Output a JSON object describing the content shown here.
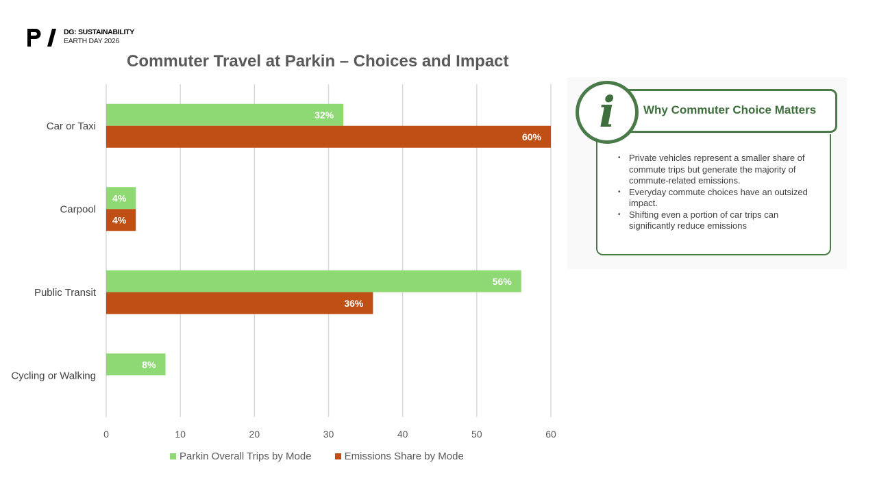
{
  "brand": {
    "logo": "P/",
    "line1": "DG: SUSTAINABILITY",
    "line2": "EARTH DAY 2026"
  },
  "chart_data": {
    "type": "bar",
    "orientation": "horizontal",
    "title": "Commuter Travel at Parkin – Choices and Impact",
    "categories": [
      "Car or Taxi",
      "Carpool",
      "Public Transit",
      "Cycling or Walking"
    ],
    "series": [
      {
        "name": "Parkin Overall Trips by Mode",
        "color": "#8ed973",
        "values": [
          32,
          4,
          56,
          8
        ],
        "labels": [
          "32%",
          "4%",
          "56%",
          "8%"
        ]
      },
      {
        "name": "Emissions Share by Mode",
        "color": "#c04f15",
        "values": [
          60,
          4,
          36,
          0
        ],
        "labels": [
          "60%",
          "4%",
          "36%",
          ""
        ]
      }
    ],
    "xlim": [
      0,
      60
    ],
    "xticks": [
      0,
      10,
      20,
      30,
      40,
      50,
      60
    ],
    "grid": true,
    "legend": "bottom"
  },
  "info": {
    "icon": "info-icon",
    "icon_glyph": "i",
    "title": "Why Commuter Choice Matters",
    "bullets": [
      "Private vehicles represent a smaller share of commute trips but generate the majority of commute-related emissions.",
      "Everyday commute choices have an outsized impact.",
      "Shifting even a portion of car trips can significantly reduce emissions"
    ]
  }
}
